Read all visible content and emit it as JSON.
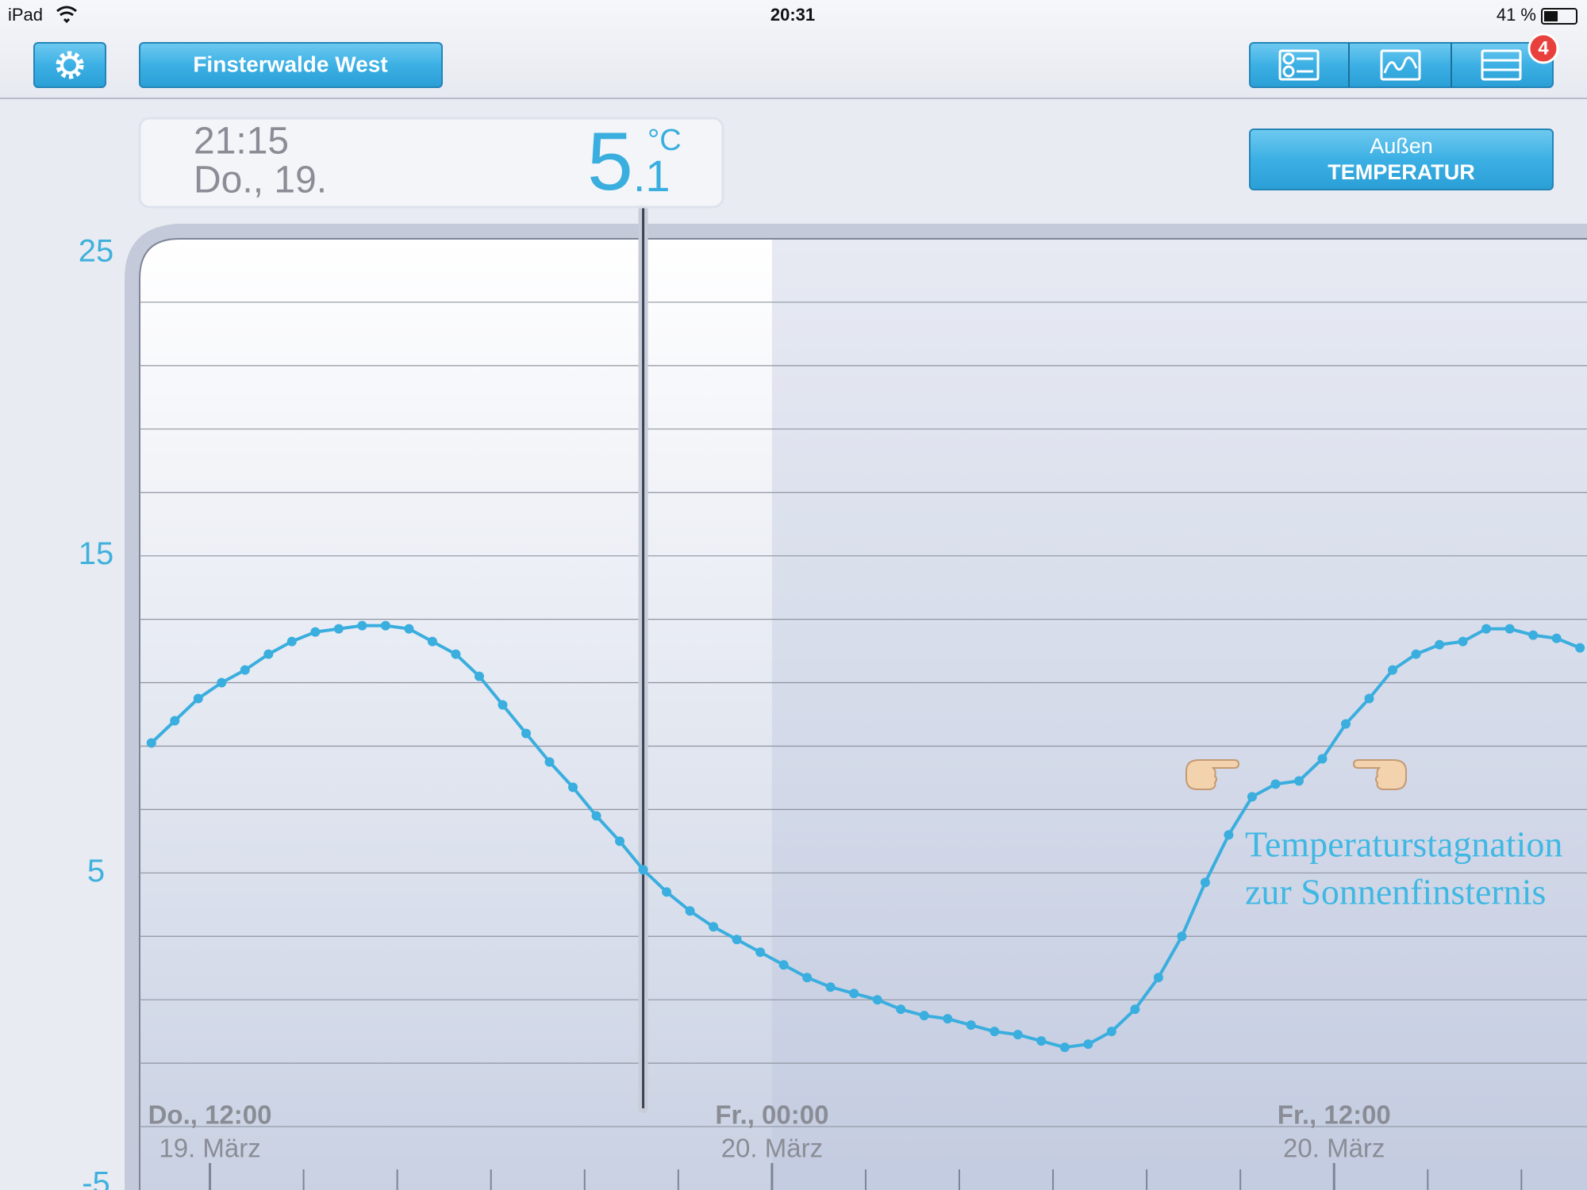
{
  "status_bar": {
    "device": "iPad",
    "time": "20:31",
    "battery": "41 %"
  },
  "toolbar": {
    "location": "Finsterwalde West",
    "badge": 4
  },
  "sensor_button": {
    "line1": "Außen",
    "line2": "TEMPERATUR"
  },
  "readout": {
    "time": "21:15",
    "date": "Do., 19.",
    "value": 5.1,
    "unit": "°C"
  },
  "chart_data": {
    "type": "line",
    "x": [
      10.75,
      11.25,
      11.75,
      12.25,
      12.75,
      13.25,
      13.75,
      14.25,
      14.75,
      15.25,
      15.75,
      16.25,
      16.75,
      17.25,
      17.75,
      18.25,
      18.75,
      19.25,
      19.75,
      20.25,
      20.75,
      21.25,
      21.75,
      22.25,
      22.75,
      23.25,
      23.75,
      24.25,
      24.75,
      25.25,
      25.75,
      26.25,
      26.75,
      27.25,
      27.75,
      28.25,
      28.75,
      29.25,
      29.75,
      30.25,
      30.75,
      31.25,
      31.75,
      32.25,
      32.75,
      33.25,
      33.75,
      34.25,
      34.75,
      35.25,
      35.75,
      36.25,
      36.75,
      37.25,
      37.75,
      38.25,
      38.75,
      39.25,
      39.75,
      40.25,
      40.75,
      41.25
    ],
    "series": [
      {
        "color": "#3aaede",
        "values": [
          9.1,
          9.8,
          10.5,
          11.0,
          11.4,
          11.9,
          12.3,
          12.6,
          12.7,
          12.8,
          12.8,
          12.7,
          12.3,
          11.9,
          11.2,
          10.3,
          9.4,
          8.5,
          7.7,
          6.8,
          6.0,
          5.1,
          4.4,
          3.8,
          3.3,
          2.9,
          2.5,
          2.1,
          1.7,
          1.4,
          1.2,
          1.0,
          0.7,
          0.5,
          0.4,
          0.2,
          0.0,
          -0.1,
          -0.3,
          -0.5,
          -0.4,
          0.0,
          0.7,
          1.7,
          3.0,
          4.7,
          6.2,
          7.4,
          7.8,
          7.9,
          8.6,
          9.7,
          10.5,
          11.4,
          11.9,
          12.2,
          12.3,
          12.7,
          12.7,
          12.5,
          12.4,
          12.1
        ]
      }
    ],
    "xlim": [
      10.5,
      41.4
    ],
    "xticks": [
      {
        "value": 12,
        "label": "Do., 12:00"
      },
      {
        "value": 24,
        "label": "Fr., 00:00"
      },
      {
        "value": 36,
        "label": "Fr., 12:00"
      }
    ],
    "xtick_dates": [
      "19. März",
      "20. März",
      "20. März"
    ],
    "minor_xticks": [
      12,
      14,
      16,
      18,
      20,
      22,
      24,
      26,
      28,
      30,
      32,
      34,
      36,
      38,
      40
    ],
    "ylim": [
      -5,
      25
    ],
    "yticks": [
      -5,
      5,
      15,
      25
    ],
    "ygrid": [
      -3,
      -1,
      1,
      3,
      5,
      7,
      9,
      11,
      13,
      15,
      17,
      19,
      21,
      23
    ],
    "highlight_from": 24,
    "annotation": [
      "Temperaturstagnation",
      "zur Sonnenfinsternis"
    ]
  }
}
